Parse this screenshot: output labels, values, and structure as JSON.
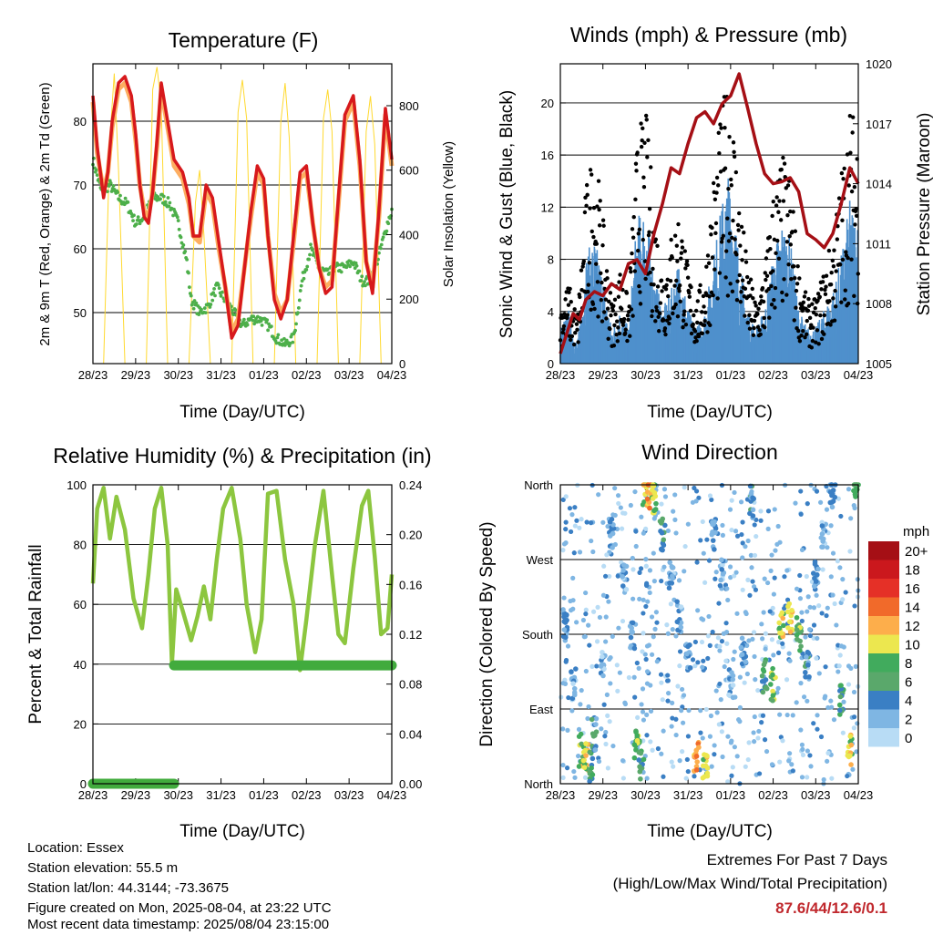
{
  "colors": {
    "t2m": "#d7191c",
    "t9m": "#fdae61",
    "td": "#4daf4a",
    "solar": "#ffd92f",
    "wind": "#4f90cc",
    "gust": "#000000",
    "pressure": "#a50f15",
    "rh": "#8cc63f",
    "precip": "#41ab3d",
    "extreme_value": "#c0282d"
  },
  "time_axis": {
    "tick_labels": [
      "28/23",
      "29/23",
      "30/23",
      "31/23",
      "01/23",
      "02/23",
      "03/23",
      "04/23"
    ]
  },
  "panels": {
    "temperature": {
      "title": "Temperature (F)",
      "xlabel": "Time (Day/UTC)",
      "ylabel_left": "2m & 9m T (Red, Orange) & 2m Td (Green)",
      "ylabel_right": "Solar Insolation (Yellow)"
    },
    "winds": {
      "title": "Winds (mph) & Pressure (mb)",
      "xlabel": "Time (Day/UTC)",
      "ylabel_left": "Sonic Wind & Gust (Blue, Black)",
      "ylabel_right": "Station Pressure (Maroon)"
    },
    "humidity": {
      "title": "Relative Humidity (%) & Precipitation (in)",
      "xlabel": "Time (Day/UTC)",
      "ylabel_left": "Percent & Total Rainfall"
    },
    "direction": {
      "title": "Wind Direction",
      "xlabel": "Time (Day/UTC)",
      "ylabel_left": "Direction (Colored By Speed)",
      "legend_title": "mph",
      "legend_labels": [
        "20+",
        "18",
        "16",
        "14",
        "12",
        "10",
        "8",
        "6",
        "4",
        "2",
        "0"
      ],
      "legend_colors": [
        "#a50f15",
        "#cb181d",
        "#e53027",
        "#f16a2a",
        "#fdae4b",
        "#ece74f",
        "#41ab5d",
        "#5aa86b",
        "#3a7fc4",
        "#7fb6e3",
        "#b8dcf5"
      ]
    }
  },
  "footer": {
    "location": "Location: Essex",
    "elevation": "Station elevation: 55.5 m",
    "latlon": "Station lat/lon: 44.3144; -73.3675",
    "created": "Figure created on Mon, 2025-08-04, at 23:22 UTC",
    "recent": "Most recent data timestamp: 2025/08/04 23:15:00",
    "extremes_title": "Extremes For Past 7 Days",
    "extremes_sub": "(High/Low/Max Wind/Total Precipitation)",
    "extremes_value": "87.6/44/12.6/0.1"
  },
  "chart_data": [
    {
      "id": "temperature",
      "type": "line",
      "title": "Temperature (F)",
      "xlabel": "Time (Day/UTC)",
      "ylabel": "2m & 9m T (Red, Orange) & 2m Td (Green)",
      "y2label": "Solar Insolation (Yellow)",
      "x_ticks": [
        "28/23",
        "29/23",
        "30/23",
        "31/23",
        "01/23",
        "02/23",
        "03/23",
        "04/23"
      ],
      "xlim": [
        0,
        7
      ],
      "ylim": [
        42,
        89
      ],
      "y_ticks": [
        50,
        60,
        70,
        80
      ],
      "y2lim": [
        0,
        930
      ],
      "y2_ticks": [
        0,
        200,
        400,
        600,
        800
      ],
      "series": [
        {
          "name": "2m T",
          "axis": "left",
          "color": "#d7191c",
          "x": [
            0,
            0.1,
            0.25,
            0.35,
            0.45,
            0.6,
            0.75,
            0.9,
            1.0,
            1.1,
            1.2,
            1.3,
            1.4,
            1.5,
            1.6,
            1.75,
            1.9,
            2.1,
            2.25,
            2.35,
            2.5,
            2.65,
            2.8,
            2.95,
            3.1,
            3.25,
            3.4,
            3.55,
            3.7,
            3.85,
            4.0,
            4.1,
            4.25,
            4.4,
            4.55,
            4.7,
            4.85,
            5.0,
            5.15,
            5.3,
            5.45,
            5.6,
            5.75,
            5.9,
            6.1,
            6.25,
            6.4,
            6.55,
            6.7,
            6.85,
            7.0
          ],
          "y": [
            84,
            76,
            68,
            72,
            80,
            86,
            87,
            84,
            78,
            70,
            65,
            64,
            69,
            77,
            86,
            80,
            74,
            72,
            68,
            62,
            62,
            70,
            68,
            61,
            54,
            46,
            48,
            57,
            66,
            73,
            71,
            62,
            52,
            49,
            52,
            62,
            72,
            73,
            64,
            57,
            53,
            54,
            68,
            81,
            84,
            74,
            58,
            53,
            66,
            82,
            74
          ]
        },
        {
          "name": "9m T",
          "axis": "left",
          "color": "#fdae61",
          "x": [
            0,
            0.1,
            0.25,
            0.35,
            0.45,
            0.6,
            0.75,
            0.9,
            1.0,
            1.1,
            1.2,
            1.3,
            1.4,
            1.5,
            1.6,
            1.75,
            1.9,
            2.1,
            2.25,
            2.35,
            2.5,
            2.65,
            2.8,
            2.95,
            3.1,
            3.25,
            3.4,
            3.55,
            3.7,
            3.85,
            4.0,
            4.1,
            4.25,
            4.4,
            4.55,
            4.7,
            4.85,
            5.0,
            5.15,
            5.3,
            5.45,
            5.6,
            5.75,
            5.9,
            6.1,
            6.25,
            6.4,
            6.55,
            6.7,
            6.85,
            7.0
          ],
          "y": [
            83,
            75,
            69,
            72,
            79,
            85,
            86,
            83,
            77,
            70,
            66,
            65,
            69,
            76,
            85,
            79,
            73,
            71,
            67,
            62,
            61,
            69,
            67,
            60,
            54,
            47,
            49,
            57,
            65,
            72,
            70,
            62,
            53,
            50,
            52,
            61,
            71,
            72,
            64,
            57,
            54,
            55,
            67,
            80,
            83,
            73,
            58,
            54,
            65,
            81,
            73
          ]
        },
        {
          "name": "2m Td",
          "axis": "left",
          "color": "#4daf4a",
          "x": [
            0,
            0.2,
            0.4,
            0.6,
            0.8,
            1.0,
            1.2,
            1.4,
            1.6,
            1.8,
            2.0,
            2.2,
            2.3,
            2.5,
            2.7,
            2.9,
            3.1,
            3.3,
            3.5,
            3.7,
            3.9,
            4.1,
            4.3,
            4.5,
            4.7,
            4.9,
            5.1,
            5.3,
            5.5,
            5.7,
            5.9,
            6.1,
            6.3,
            6.5,
            6.7,
            6.9,
            7.0
          ],
          "y": [
            74,
            69,
            70,
            68,
            67,
            64,
            65,
            68,
            68,
            67,
            64,
            58,
            52,
            50,
            51,
            54,
            52,
            50,
            48,
            49,
            49,
            48,
            46,
            45,
            46,
            55,
            60,
            57,
            56,
            57,
            57,
            58,
            55,
            55,
            59,
            64,
            66
          ]
        },
        {
          "name": "Solar Insolation",
          "axis": "right",
          "color": "#ffd92f",
          "x": [
            0,
            0.25,
            0.4,
            0.5,
            0.6,
            0.75,
            1.25,
            1.4,
            1.5,
            1.6,
            1.75,
            2.25,
            2.4,
            2.5,
            2.6,
            2.75,
            3.25,
            3.4,
            3.5,
            3.6,
            3.75,
            4.25,
            4.4,
            4.5,
            4.6,
            4.75,
            5.25,
            5.4,
            5.5,
            5.6,
            5.75,
            6.25,
            6.4,
            6.5,
            6.6,
            6.75,
            7.0
          ],
          "y": [
            0,
            0,
            700,
            900,
            600,
            0,
            0,
            850,
            920,
            800,
            0,
            0,
            500,
            600,
            400,
            0,
            0,
            780,
            880,
            760,
            0,
            0,
            750,
            870,
            700,
            0,
            0,
            760,
            850,
            720,
            0,
            0,
            720,
            830,
            680,
            0,
            0
          ]
        }
      ]
    },
    {
      "id": "winds",
      "type": "scatter",
      "title": "Winds (mph) & Pressure (mb)",
      "xlabel": "Time (Day/UTC)",
      "ylabel": "Sonic Wind & Gust (Blue, Black)",
      "y2label": "Station Pressure (Maroon)",
      "x_ticks": [
        "28/23",
        "29/23",
        "30/23",
        "31/23",
        "01/23",
        "02/23",
        "03/23",
        "04/23"
      ],
      "xlim": [
        0,
        7
      ],
      "ylim": [
        0,
        23
      ],
      "y_ticks": [
        0,
        4,
        8,
        12,
        16,
        20
      ],
      "y2lim": [
        1005,
        1020
      ],
      "y2_ticks": [
        1005,
        1008,
        1011,
        1014,
        1017,
        1020
      ],
      "series": [
        {
          "name": "Sonic Wind",
          "axis": "left",
          "color": "#4f90cc",
          "x": [
            0,
            0.2,
            0.4,
            0.6,
            0.8,
            1.0,
            1.2,
            1.4,
            1.6,
            1.8,
            2.0,
            2.2,
            2.4,
            2.6,
            2.8,
            3.0,
            3.2,
            3.4,
            3.6,
            3.8,
            4.0,
            4.2,
            4.4,
            4.6,
            4.8,
            5.0,
            5.2,
            5.4,
            5.6,
            5.8,
            6.0,
            6.2,
            6.4,
            6.6,
            6.8,
            7.0
          ],
          "y": [
            2,
            3,
            1,
            6,
            7,
            5,
            2,
            3,
            2,
            8,
            9,
            5,
            3,
            4,
            6,
            3,
            2,
            3,
            6,
            9,
            11,
            6,
            3,
            2,
            3,
            6,
            8,
            7,
            3,
            2,
            2,
            3,
            4,
            6,
            9,
            8
          ]
        },
        {
          "name": "Gust",
          "axis": "left",
          "color": "#000000",
          "x": [
            0,
            0.2,
            0.4,
            0.6,
            0.8,
            1.0,
            1.2,
            1.4,
            1.6,
            1.8,
            2.0,
            2.2,
            2.4,
            2.6,
            2.8,
            3.0,
            3.2,
            3.4,
            3.6,
            3.8,
            4.0,
            4.2,
            4.4,
            4.6,
            4.8,
            5.0,
            5.2,
            5.4,
            5.6,
            5.8,
            6.0,
            6.2,
            6.4,
            6.6,
            6.8,
            7.0
          ],
          "y": [
            4,
            5,
            3,
            11,
            14,
            9,
            4,
            6,
            4,
            14,
            16,
            10,
            6,
            8,
            10,
            6,
            4,
            6,
            12,
            16,
            18,
            11,
            6,
            4,
            6,
            11,
            13,
            12,
            6,
            4,
            4,
            6,
            8,
            12,
            16,
            15
          ]
        },
        {
          "name": "Station Pressure",
          "axis": "right",
          "color": "#a50f15",
          "x": [
            0,
            0.15,
            0.3,
            0.45,
            0.6,
            0.8,
            1.0,
            1.2,
            1.4,
            1.6,
            1.8,
            2.0,
            2.2,
            2.4,
            2.6,
            2.8,
            3.0,
            3.2,
            3.4,
            3.6,
            3.8,
            4.0,
            4.2,
            4.4,
            4.6,
            4.8,
            5.0,
            5.2,
            5.4,
            5.6,
            5.8,
            6.0,
            6.2,
            6.4,
            6.6,
            6.8,
            7.0
          ],
          "y": [
            1005.5,
            1006.5,
            1007.5,
            1007.2,
            1008.2,
            1008.6,
            1008.4,
            1009.0,
            1008.7,
            1010.0,
            1010.2,
            1009.5,
            1011.5,
            1013.0,
            1014.8,
            1014.5,
            1016.0,
            1017.3,
            1017.6,
            1017.0,
            1018.0,
            1018.4,
            1019.5,
            1017.8,
            1016.0,
            1014.5,
            1014.0,
            1014.1,
            1014.3,
            1013.6,
            1011.5,
            1011.2,
            1010.8,
            1011.5,
            1013.0,
            1014.8,
            1014.0
          ]
        }
      ]
    },
    {
      "id": "humidity",
      "type": "line",
      "title": "Relative Humidity (%) & Precipitation (in)",
      "xlabel": "Time (Day/UTC)",
      "ylabel": "Percent & Total Rainfall",
      "x_ticks": [
        "28/23",
        "29/23",
        "30/23",
        "31/23",
        "01/23",
        "02/23",
        "03/23",
        "04/23"
      ],
      "xlim": [
        0,
        7
      ],
      "ylim": [
        0,
        100
      ],
      "y_ticks": [
        0,
        20,
        40,
        60,
        80,
        100
      ],
      "y2lim": [
        0,
        0.24
      ],
      "y2_ticks": [
        "0.00",
        "0.04",
        "0.08",
        "0.12",
        "0.16",
        "0.20",
        "0.24"
      ],
      "series": [
        {
          "name": "Relative Humidity",
          "axis": "left",
          "color": "#8cc63f",
          "x": [
            0,
            0.1,
            0.25,
            0.4,
            0.55,
            0.75,
            0.95,
            1.15,
            1.3,
            1.45,
            1.6,
            1.75,
            1.85,
            1.95,
            2.1,
            2.3,
            2.45,
            2.6,
            2.75,
            2.9,
            3.05,
            3.25,
            3.45,
            3.6,
            3.8,
            3.95,
            4.1,
            4.3,
            4.5,
            4.7,
            4.85,
            5.0,
            5.2,
            5.4,
            5.6,
            5.75,
            5.9,
            6.1,
            6.3,
            6.45,
            6.6,
            6.75,
            6.9,
            7.0
          ],
          "y": [
            67,
            92,
            99,
            82,
            96,
            85,
            62,
            52,
            70,
            92,
            99,
            80,
            40,
            65,
            58,
            48,
            56,
            66,
            55,
            75,
            92,
            99,
            82,
            60,
            44,
            55,
            97,
            98,
            75,
            60,
            38,
            55,
            80,
            98,
            70,
            50,
            47,
            72,
            93,
            98,
            76,
            50,
            52,
            70
          ]
        },
        {
          "name": "Total Precipitation",
          "axis": "right",
          "color": "#41ab3d",
          "x": [
            0,
            1.9,
            1.9,
            7.0
          ],
          "y": [
            0,
            0,
            0.095,
            0.095
          ]
        }
      ]
    },
    {
      "id": "direction",
      "type": "scatter",
      "title": "Wind Direction",
      "xlabel": "Time (Day/UTC)",
      "ylabel": "Direction (Colored By Speed)",
      "x_ticks": [
        "28/23",
        "29/23",
        "30/23",
        "31/23",
        "01/23",
        "02/23",
        "03/23",
        "04/23"
      ],
      "xlim": [
        0,
        7
      ],
      "ylim": [
        0,
        360
      ],
      "y_ticks": [
        "North",
        "East",
        "South",
        "West",
        "North"
      ],
      "series": [
        {
          "name": "Wind Direction",
          "color_by": "speed_mph",
          "x": [
            0.1,
            0.3,
            0.5,
            0.6,
            0.7,
            0.8,
            1.0,
            1.2,
            1.5,
            1.7,
            1.8,
            1.9,
            2.0,
            2.1,
            2.2,
            2.4,
            2.6,
            2.8,
            3.0,
            3.2,
            3.4,
            3.6,
            3.8,
            4.0,
            4.3,
            4.5,
            4.8,
            5.0,
            5.2,
            5.4,
            5.6,
            5.8,
            6.0,
            6.2,
            6.4,
            6.6,
            6.8,
            6.95
          ],
          "y": [
            190,
            120,
            40,
            30,
            20,
            60,
            150,
            300,
            250,
            180,
            50,
            20,
            355,
            350,
            345,
            300,
            250,
            200,
            150,
            30,
            20,
            300,
            250,
            120,
            160,
            340,
            130,
            120,
            190,
            200,
            180,
            140,
            250,
            300,
            350,
            100,
            40,
            355
          ],
          "speed": [
            3,
            2,
            8,
            10,
            6,
            4,
            2,
            3,
            2,
            3,
            8,
            6,
            10,
            12,
            9,
            5,
            3,
            2,
            3,
            12,
            10,
            3,
            2,
            2,
            3,
            4,
            6,
            8,
            10,
            11,
            8,
            4,
            3,
            2,
            3,
            6,
            10,
            8
          ]
        }
      ]
    }
  ]
}
